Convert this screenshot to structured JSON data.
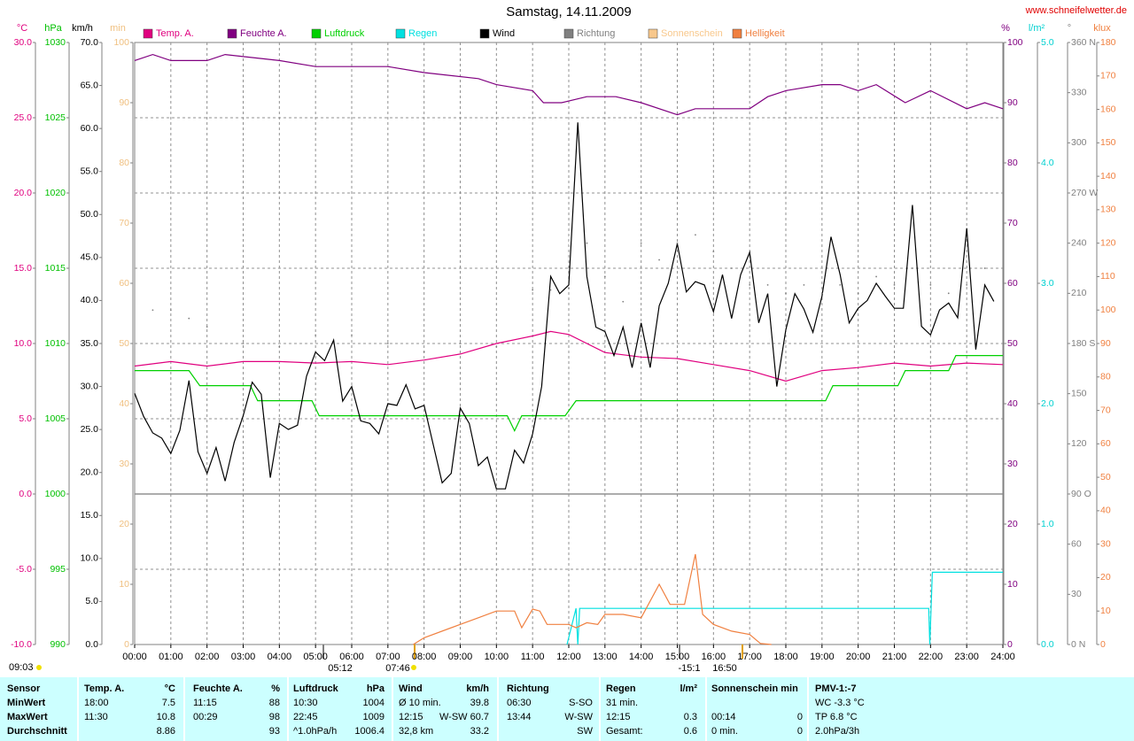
{
  "title": "Samstag, 14.11.2009",
  "source": "www.schneifelwetter.de",
  "chart_data": {
    "type": "line",
    "xlim": [
      0,
      24
    ],
    "xticks": [
      {
        "value": 0,
        "label": "00:00"
      },
      {
        "value": 1,
        "label": "01:00"
      },
      {
        "value": 2,
        "label": "02:00"
      },
      {
        "value": 3,
        "label": "03:00"
      },
      {
        "value": 4,
        "label": "04:00"
      },
      {
        "value": 5,
        "label": "05:00"
      },
      {
        "value": 6,
        "label": "06:00"
      },
      {
        "value": 7,
        "label": "07:00"
      },
      {
        "value": 8,
        "label": "08:00"
      },
      {
        "value": 9,
        "label": "09:00"
      },
      {
        "value": 10,
        "label": "10:00"
      },
      {
        "value": 11,
        "label": "11:00"
      },
      {
        "value": 12,
        "label": "12:00"
      },
      {
        "value": 13,
        "label": "13:00"
      },
      {
        "value": 14,
        "label": "14:00"
      },
      {
        "value": 15,
        "label": "15:00"
      },
      {
        "value": 16,
        "label": "16:00"
      },
      {
        "value": 17,
        "label": "17:00"
      },
      {
        "value": 18,
        "label": "18:00"
      },
      {
        "value": 19,
        "label": "19:00"
      },
      {
        "value": 20,
        "label": "20:00"
      },
      {
        "value": 21,
        "label": "21:00"
      },
      {
        "value": 22,
        "label": "22:00"
      },
      {
        "value": 23,
        "label": "23:00"
      },
      {
        "value": 24,
        "label": "24:00"
      }
    ],
    "grid": true,
    "axes": [
      {
        "label": "°C",
        "color": "#e0007f",
        "lim": [
          -10,
          30
        ],
        "ticks": [
          {
            "value": -10,
            "label": "-10.0"
          },
          {
            "value": -5,
            "label": "-5.0"
          },
          {
            "value": 0,
            "label": "0.0"
          },
          {
            "value": 5,
            "label": "5.0"
          },
          {
            "value": 10,
            "label": "10.0"
          },
          {
            "value": 15,
            "label": "15.0"
          },
          {
            "value": 20,
            "label": "20.0"
          },
          {
            "value": 25,
            "label": "25.0"
          },
          {
            "value": 30,
            "label": "30.0"
          }
        ]
      },
      {
        "label": "hPa",
        "color": "#00c000",
        "lim": [
          990,
          1030
        ],
        "ticks": [
          990,
          995,
          1000,
          1005,
          1010,
          1015,
          1020,
          1025,
          1030
        ]
      },
      {
        "label": "km/h",
        "color": "#000000",
        "lim": [
          0,
          70
        ],
        "ticks": [
          {
            "value": 0,
            "label": "0.0"
          },
          {
            "value": 5,
            "label": "5.0"
          },
          {
            "value": 10,
            "label": "10.0"
          },
          {
            "value": 15,
            "label": "15.0"
          },
          {
            "value": 20,
            "label": "20.0"
          },
          {
            "value": 25,
            "label": "25.0"
          },
          {
            "value": 30,
            "label": "30.0"
          },
          {
            "value": 35,
            "label": "35.0"
          },
          {
            "value": 40,
            "label": "40.0"
          },
          {
            "value": 45,
            "label": "45.0"
          },
          {
            "value": 50,
            "label": "50.0"
          },
          {
            "value": 55,
            "label": "55.0"
          },
          {
            "value": 60,
            "label": "60.0"
          },
          {
            "value": 65,
            "label": "65.0"
          },
          {
            "value": 70,
            "label": "70.0"
          }
        ]
      },
      {
        "label": "min",
        "color": "#f0c080",
        "lim": [
          0,
          100
        ],
        "ticks": [
          0,
          10,
          20,
          30,
          40,
          50,
          60,
          70,
          80,
          90,
          100
        ]
      },
      {
        "label": "%",
        "color": "#800080",
        "lim": [
          0,
          100
        ],
        "ticks": [
          0,
          10,
          20,
          30,
          40,
          50,
          60,
          70,
          80,
          90,
          100
        ]
      },
      {
        "label": "l/m²",
        "color": "#00d0d0",
        "lim": [
          0,
          5
        ],
        "ticks": [
          {
            "value": 0,
            "label": "0.0"
          },
          {
            "value": 1,
            "label": "1.0"
          },
          {
            "value": 2,
            "label": "2.0"
          },
          {
            "value": 3,
            "label": "3.0"
          },
          {
            "value": 4,
            "label": "4.0"
          },
          {
            "value": 5,
            "label": "5.0"
          }
        ]
      },
      {
        "label": "°",
        "color": "#808080",
        "lim": [
          0,
          360
        ],
        "ticks": [
          {
            "value": 0,
            "label": "0 N"
          },
          30,
          60,
          {
            "value": 90,
            "label": "90 O"
          },
          120,
          150,
          {
            "value": 180,
            "label": "180 S"
          },
          210,
          240,
          {
            "value": 270,
            "label": "270 W"
          },
          300,
          330,
          {
            "value": 360,
            "label": "360 N"
          }
        ]
      },
      {
        "label": "klux",
        "color": "#f08040",
        "lim": [
          0,
          180
        ],
        "ticks": [
          0,
          10,
          20,
          30,
          40,
          50,
          60,
          70,
          80,
          90,
          100,
          110,
          120,
          130,
          140,
          150,
          160,
          170,
          180
        ]
      }
    ],
    "series": [
      {
        "name": "Temp. A.",
        "color": "#e0007f",
        "axis": 0,
        "x": [
          0,
          1,
          2,
          3,
          4,
          5,
          6,
          7,
          8,
          9,
          10,
          11,
          11.5,
          12,
          13,
          14,
          15,
          16,
          17,
          18,
          19,
          20,
          21,
          22,
          23,
          24
        ],
        "values": [
          8.5,
          8.8,
          8.5,
          8.8,
          8.8,
          8.7,
          8.8,
          8.6,
          8.9,
          9.3,
          10.0,
          10.5,
          10.8,
          10.6,
          9.4,
          9.1,
          9.0,
          8.6,
          8.2,
          7.5,
          8.2,
          8.4,
          8.7,
          8.5,
          8.7,
          8.6
        ]
      },
      {
        "name": "Feuchte A.",
        "color": "#800080",
        "axis": 4,
        "x": [
          0,
          0.5,
          1,
          2,
          2.5,
          4,
          5,
          7,
          8,
          9.5,
          10,
          11,
          11.3,
          11.8,
          12.5,
          13.3,
          14,
          15,
          15.5,
          17,
          17.5,
          18,
          19,
          19.5,
          20,
          20.5,
          21.3,
          22,
          23,
          23.5,
          24
        ],
        "values": [
          97,
          98,
          97,
          97,
          98,
          97,
          96,
          96,
          95,
          94,
          93,
          92,
          90,
          90,
          91,
          91,
          90,
          88,
          89,
          89,
          91,
          92,
          93,
          93,
          92,
          93,
          90,
          92,
          89,
          90,
          89
        ]
      },
      {
        "name": "Luftdruck",
        "color": "#00d000",
        "axis": 1,
        "x": [
          0,
          1.5,
          1.8,
          3.2,
          3.4,
          4.9,
          5.1,
          10.3,
          10.5,
          10.7,
          11.9,
          12.2,
          19.1,
          19.3,
          21.1,
          21.3,
          22.5,
          22.7,
          24
        ],
        "values": [
          1008.2,
          1008.2,
          1007.2,
          1007.2,
          1006.2,
          1006.2,
          1005.2,
          1005.2,
          1004.2,
          1005.2,
          1005.2,
          1006.2,
          1006.2,
          1007.2,
          1007.2,
          1008.2,
          1008.2,
          1009.2,
          1009.2
        ]
      },
      {
        "name": "Regen",
        "color": "#00e0e0",
        "axis": 5,
        "x": [
          11.95,
          12.2,
          12.25,
          12.3,
          21.95,
          21.98,
          22.05,
          24
        ],
        "values": [
          0,
          0.3,
          0,
          0.3,
          0.3,
          0,
          0.6,
          0.6
        ]
      },
      {
        "name": "Wind",
        "color": "#000000",
        "axis": 2,
        "x": [
          0,
          0.25,
          0.5,
          0.75,
          1,
          1.25,
          1.5,
          1.75,
          2,
          2.25,
          2.5,
          2.75,
          3,
          3.25,
          3.5,
          3.75,
          4,
          4.25,
          4.5,
          4.75,
          5,
          5.25,
          5.5,
          5.75,
          6,
          6.25,
          6.5,
          6.75,
          7,
          7.25,
          7.5,
          7.75,
          8,
          8.25,
          8.5,
          8.75,
          9,
          9.25,
          9.5,
          9.75,
          10,
          10.25,
          10.5,
          10.75,
          11,
          11.25,
          11.5,
          11.75,
          12,
          12.25,
          12.5,
          12.75,
          13,
          13.25,
          13.5,
          13.75,
          14,
          14.25,
          14.5,
          14.75,
          15,
          15.25,
          15.5,
          15.75,
          16,
          16.25,
          16.5,
          16.75,
          17,
          17.25,
          17.5,
          17.75,
          18,
          18.25,
          18.5,
          18.75,
          19,
          19.25,
          19.5,
          19.75,
          20,
          20.25,
          20.5,
          20.75,
          21,
          21.25,
          21.5,
          21.75,
          22,
          22.25,
          22.5,
          22.75,
          23,
          23.25,
          23.5,
          23.75
        ],
        "values": [
          29.2,
          26.5,
          24.6,
          24.0,
          22.2,
          24.9,
          30.7,
          22.4,
          19.9,
          22.9,
          19.0,
          23.5,
          26.6,
          30.5,
          29.1,
          19.4,
          25.7,
          25.0,
          25.5,
          31.2,
          34.0,
          33.0,
          35.4,
          28.3,
          30.0,
          26.0,
          25.7,
          24.5,
          28.0,
          27.8,
          30.2,
          27.4,
          27.8,
          23.3,
          18.8,
          19.9,
          27.5,
          25.7,
          20.8,
          21.8,
          18.1,
          18.1,
          22.6,
          21.1,
          24.5,
          30.0,
          42.8,
          40.8,
          41.8,
          60.7,
          42.8,
          36.9,
          36.4,
          33.6,
          36.9,
          32.2,
          37.4,
          32.2,
          39.4,
          42.0,
          46.6,
          41.0,
          42.2,
          41.8,
          38.7,
          43.0,
          37.9,
          43.0,
          45.6,
          37.4,
          40.8,
          30.0,
          36.6,
          40.8,
          39.0,
          36.3,
          40.5,
          47.4,
          43.0,
          37.4,
          39.1,
          40.0,
          42.0,
          40.5,
          39.1,
          39.1,
          51.1,
          37.0,
          36.0,
          38.9,
          39.7,
          38.0,
          48.4,
          34.3,
          41.8,
          39.9
        ]
      },
      {
        "name": "Richtung",
        "color": "#808080",
        "axis": 6,
        "marker": "dot",
        "x": [
          0.5,
          1,
          1.5,
          2,
          3,
          4,
          5,
          6,
          7,
          8,
          9,
          10,
          11,
          11.5,
          12,
          12.5,
          13,
          13.5,
          14,
          14.5,
          15,
          15.5,
          16,
          16.5,
          17,
          17.5,
          18,
          18.5,
          19,
          19.5,
          20,
          20.5,
          21,
          21.5,
          22,
          22.5,
          23,
          23.5
        ],
        "values": [
          200,
          200,
          195,
          190,
          180,
          178,
          185,
          185,
          180,
          175,
          180,
          178,
          212,
          212,
          213,
          240,
          220,
          205,
          240,
          230,
          240,
          245,
          235,
          225,
          215,
          215,
          210,
          215,
          210,
          215,
          210,
          220,
          215,
          225,
          215,
          210,
          215,
          225
        ]
      },
      {
        "name": "Sonnenschein",
        "color": "#f8c88c",
        "axis": 3
      },
      {
        "name": "Helligkeit",
        "color": "#f08040",
        "axis": 7,
        "x": [
          7.7,
          8,
          9,
          9.5,
          10,
          10.5,
          10.7,
          11,
          11.2,
          11.4,
          12,
          12.2,
          12.5,
          12.8,
          13,
          13.5,
          14,
          14.5,
          14.8,
          15.2,
          15.5,
          15.7,
          16,
          16.5,
          17,
          17.3,
          17.6
        ],
        "values": [
          0,
          2,
          6,
          8,
          10,
          10,
          5,
          10.6,
          10,
          6,
          6,
          5,
          6.5,
          6,
          9,
          9,
          8,
          18,
          12,
          12,
          27,
          9,
          6,
          4,
          3,
          0.3,
          0
        ]
      }
    ],
    "annotations": [
      "09:03",
      "05:12",
      "07:46",
      "-15:1",
      "16:50"
    ]
  },
  "table": {
    "header": [
      "Sensor",
      "Temp. A.",
      "°C",
      "Feuchte A.",
      "%",
      "Luftdruck",
      "hPa",
      "Wind",
      "km/h",
      "Richtung",
      null,
      "Regen",
      "l/m²",
      "Sonnenschein min",
      null,
      "PMV-1:-7"
    ],
    "rows": [
      [
        "MinWert",
        "18:00",
        "7.5",
        "11:15",
        "88",
        "10:30",
        "1004",
        "Ø 10 min.",
        "39.8",
        "06:30",
        "S-SO",
        "31 min.",
        null,
        null,
        null,
        "WC -3.3 °C"
      ],
      [
        "MaxWert",
        "11:30",
        "10.8",
        "00:29",
        "98",
        "22:45",
        "1009",
        "12:15",
        "W-SW 60.7",
        "13:44",
        "W-SW",
        "12:15",
        "0.3",
        "00:14",
        "0",
        "TP 6.8 °C"
      ],
      [
        "Durchschnitt",
        null,
        "8.86",
        null,
        "93",
        "^1.0hPa/h",
        "1006.4",
        "32,8 km",
        "33.2",
        null,
        "SW",
        "Gesamt:",
        "0.6",
        "0 min.",
        "0",
        "2.0hPa/3h"
      ]
    ]
  }
}
